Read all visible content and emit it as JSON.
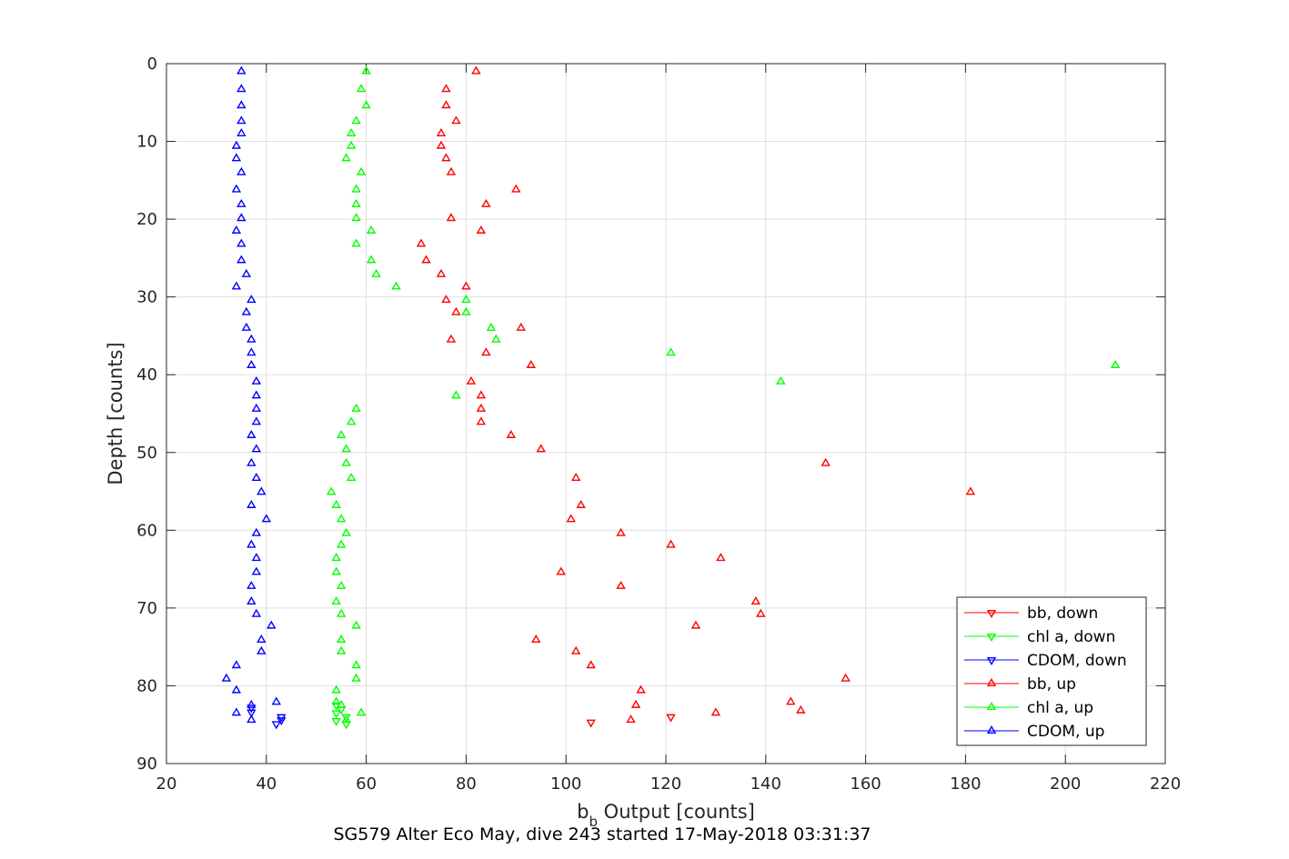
{
  "chart_data": {
    "type": "scatter",
    "title": "",
    "xlabel": "b_b Output [counts]",
    "xlabel_main": "b",
    "xlabel_sub": "b",
    "xlabel_rest": " Output [counts]",
    "ylabel": "Depth [counts]",
    "caption": "SG579 Alter Eco May, dive 243 started 17-May-2018 03:31:37",
    "xlim": [
      20,
      220
    ],
    "ylim": [
      0,
      90
    ],
    "y_reversed": true,
    "grid": true,
    "legend_position": "bottom-right",
    "xticks": [
      20,
      40,
      60,
      80,
      100,
      120,
      140,
      160,
      180,
      200,
      220
    ],
    "yticks": [
      0,
      10,
      20,
      30,
      40,
      50,
      60,
      70,
      80,
      90
    ],
    "series": [
      {
        "name": "bb, down",
        "color": "#ff0000",
        "marker": "triangle-down",
        "points": [
          [
            105,
            84.7
          ],
          [
            121,
            84.0
          ]
        ]
      },
      {
        "name": "chl a, down",
        "color": "#00ff00",
        "marker": "triangle-down",
        "points": [
          [
            54,
            82.5
          ],
          [
            55,
            83.0
          ],
          [
            54,
            83.5
          ],
          [
            56,
            84.0
          ],
          [
            54,
            84.5
          ],
          [
            56,
            84.9
          ]
        ]
      },
      {
        "name": "CDOM, down",
        "color": "#0000ff",
        "marker": "triangle-down",
        "points": [
          [
            37,
            82.8
          ],
          [
            37,
            83.4
          ],
          [
            43,
            84.0
          ],
          [
            43,
            84.4
          ],
          [
            42,
            84.9
          ]
        ]
      },
      {
        "name": "bb, up",
        "color": "#ff0000",
        "marker": "triangle-up",
        "points": [
          [
            82,
            1
          ],
          [
            76,
            3.3
          ],
          [
            76,
            5.4
          ],
          [
            78,
            7.4
          ],
          [
            75,
            9
          ],
          [
            75,
            10.6
          ],
          [
            76,
            12.2
          ],
          [
            77,
            14
          ],
          [
            90,
            16.2
          ],
          [
            84,
            18.1
          ],
          [
            77,
            19.9
          ],
          [
            83,
            21.5
          ],
          [
            71,
            23.2
          ],
          [
            72,
            25.3
          ],
          [
            75,
            27.1
          ],
          [
            80,
            28.7
          ],
          [
            76,
            30.4
          ],
          [
            78,
            32
          ],
          [
            91,
            34
          ],
          [
            77,
            35.5
          ],
          [
            84,
            37.2
          ],
          [
            93,
            38.8
          ],
          [
            81,
            40.9
          ],
          [
            83,
            42.7
          ],
          [
            83,
            44.4
          ],
          [
            83,
            46.1
          ],
          [
            89,
            47.8
          ],
          [
            95,
            49.6
          ],
          [
            152,
            51.4
          ],
          [
            102,
            53.3
          ],
          [
            181,
            55.1
          ],
          [
            103,
            56.8
          ],
          [
            101,
            58.6
          ],
          [
            111,
            60.4
          ],
          [
            121,
            61.9
          ],
          [
            131,
            63.6
          ],
          [
            99,
            65.4
          ],
          [
            111,
            67.2
          ],
          [
            138,
            69.2
          ],
          [
            139,
            70.8
          ],
          [
            126,
            72.3
          ],
          [
            94,
            74.1
          ],
          [
            102,
            75.6
          ],
          [
            105,
            77.4
          ],
          [
            156,
            79.1
          ],
          [
            115,
            80.6
          ],
          [
            145,
            82.1
          ],
          [
            114,
            82.5
          ],
          [
            147,
            83.2
          ],
          [
            130,
            83.5
          ],
          [
            113,
            84.4
          ]
        ]
      },
      {
        "name": "chl a, up",
        "color": "#00ff00",
        "marker": "triangle-up",
        "points": [
          [
            60,
            1
          ],
          [
            59,
            3.3
          ],
          [
            60,
            5.4
          ],
          [
            58,
            7.4
          ],
          [
            57,
            9
          ],
          [
            57,
            10.6
          ],
          [
            56,
            12.2
          ],
          [
            59,
            14
          ],
          [
            58,
            16.2
          ],
          [
            58,
            18.1
          ],
          [
            58,
            19.9
          ],
          [
            61,
            21.5
          ],
          [
            58,
            23.2
          ],
          [
            61,
            25.3
          ],
          [
            62,
            27.1
          ],
          [
            66,
            28.7
          ],
          [
            80,
            30.4
          ],
          [
            80,
            32
          ],
          [
            85,
            34
          ],
          [
            86,
            35.5
          ],
          [
            121,
            37.2
          ],
          [
            210,
            38.8
          ],
          [
            143,
            40.9
          ],
          [
            78,
            42.7
          ],
          [
            58,
            44.4
          ],
          [
            57,
            46.1
          ],
          [
            55,
            47.8
          ],
          [
            56,
            49.6
          ],
          [
            56,
            51.4
          ],
          [
            57,
            53.3
          ],
          [
            53,
            55.1
          ],
          [
            54,
            56.8
          ],
          [
            55,
            58.6
          ],
          [
            56,
            60.4
          ],
          [
            55,
            61.9
          ],
          [
            54,
            63.6
          ],
          [
            54,
            65.4
          ],
          [
            55,
            67.2
          ],
          [
            54,
            69.2
          ],
          [
            55,
            70.8
          ],
          [
            58,
            72.3
          ],
          [
            55,
            74.1
          ],
          [
            55,
            75.6
          ],
          [
            58,
            77.4
          ],
          [
            58,
            79.1
          ],
          [
            54,
            80.6
          ],
          [
            54,
            82.1
          ],
          [
            55,
            82.5
          ],
          [
            59,
            83.5
          ],
          [
            56,
            84.4
          ]
        ]
      },
      {
        "name": "CDOM, up",
        "color": "#0000ff",
        "marker": "triangle-up",
        "points": [
          [
            35,
            1
          ],
          [
            35,
            3.3
          ],
          [
            35,
            5.4
          ],
          [
            35,
            7.4
          ],
          [
            35,
            9
          ],
          [
            34,
            10.6
          ],
          [
            34,
            12.2
          ],
          [
            35,
            14
          ],
          [
            34,
            16.2
          ],
          [
            35,
            18.1
          ],
          [
            35,
            19.9
          ],
          [
            34,
            21.5
          ],
          [
            35,
            23.2
          ],
          [
            35,
            25.3
          ],
          [
            36,
            27.1
          ],
          [
            34,
            28.7
          ],
          [
            37,
            30.4
          ],
          [
            36,
            32
          ],
          [
            36,
            34
          ],
          [
            37,
            35.5
          ],
          [
            37,
            37.2
          ],
          [
            37,
            38.8
          ],
          [
            38,
            40.9
          ],
          [
            38,
            42.7
          ],
          [
            38,
            44.4
          ],
          [
            38,
            46.1
          ],
          [
            37,
            47.8
          ],
          [
            38,
            49.6
          ],
          [
            37,
            51.4
          ],
          [
            38,
            53.3
          ],
          [
            39,
            55.1
          ],
          [
            37,
            56.8
          ],
          [
            40,
            58.6
          ],
          [
            38,
            60.4
          ],
          [
            37,
            61.9
          ],
          [
            38,
            63.6
          ],
          [
            38,
            65.4
          ],
          [
            37,
            67.2
          ],
          [
            37,
            69.2
          ],
          [
            38,
            70.8
          ],
          [
            41,
            72.3
          ],
          [
            39,
            74.1
          ],
          [
            39,
            75.6
          ],
          [
            34,
            77.4
          ],
          [
            32,
            79.1
          ],
          [
            34,
            80.6
          ],
          [
            42,
            82.1
          ],
          [
            37,
            82.5
          ],
          [
            34,
            83.5
          ],
          [
            37,
            84.4
          ]
        ]
      }
    ]
  }
}
